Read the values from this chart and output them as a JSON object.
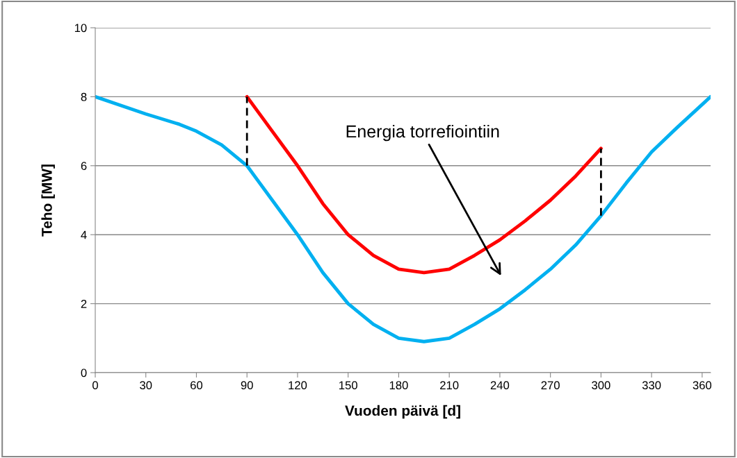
{
  "chart_data": {
    "type": "line",
    "xlabel": "Vuoden päivä [d]",
    "ylabel": "Teho [MW]",
    "xlim": [
      0,
      365
    ],
    "xticks": [
      0,
      30,
      60,
      90,
      120,
      150,
      180,
      210,
      240,
      270,
      300,
      330,
      360
    ],
    "ylim": [
      0,
      10
    ],
    "yticks": [
      0,
      2,
      4,
      6,
      8,
      10
    ],
    "grid": "y",
    "legend": false,
    "marker": "none",
    "series": [
      {
        "color": "#00b0f0",
        "x": [
          0,
          30,
          50,
          60,
          75,
          90,
          105,
          120,
          135,
          150,
          165,
          180,
          195,
          210,
          225,
          240,
          255,
          270,
          285,
          300,
          315,
          330,
          345,
          365
        ],
        "values": [
          8.0,
          7.5,
          7.2,
          7.0,
          6.6,
          6.0,
          5.0,
          4.0,
          2.9,
          2.0,
          1.4,
          1.0,
          0.9,
          1.0,
          1.4,
          1.85,
          2.4,
          3.0,
          3.7,
          4.55,
          5.5,
          6.4,
          7.1,
          8.0
        ]
      },
      {
        "color": "#ff0000",
        "x": [
          90,
          105,
          120,
          135,
          150,
          165,
          180,
          195,
          210,
          225,
          240,
          255,
          270,
          285,
          300
        ],
        "values": [
          8.0,
          7.0,
          6.0,
          4.9,
          4.0,
          3.4,
          3.0,
          2.9,
          3.0,
          3.4,
          3.85,
          4.4,
          5.0,
          5.7,
          6.5
        ]
      },
      {
        "color": "#000000",
        "line_style": "dashed",
        "x": [
          90,
          90
        ],
        "values": [
          6.0,
          8.0
        ]
      },
      {
        "color": "#000000",
        "line_style": "dashed",
        "x": [
          300,
          300
        ],
        "values": [
          4.55,
          6.5
        ]
      }
    ],
    "annotations": [
      "Energia torrefiointiin"
    ]
  }
}
